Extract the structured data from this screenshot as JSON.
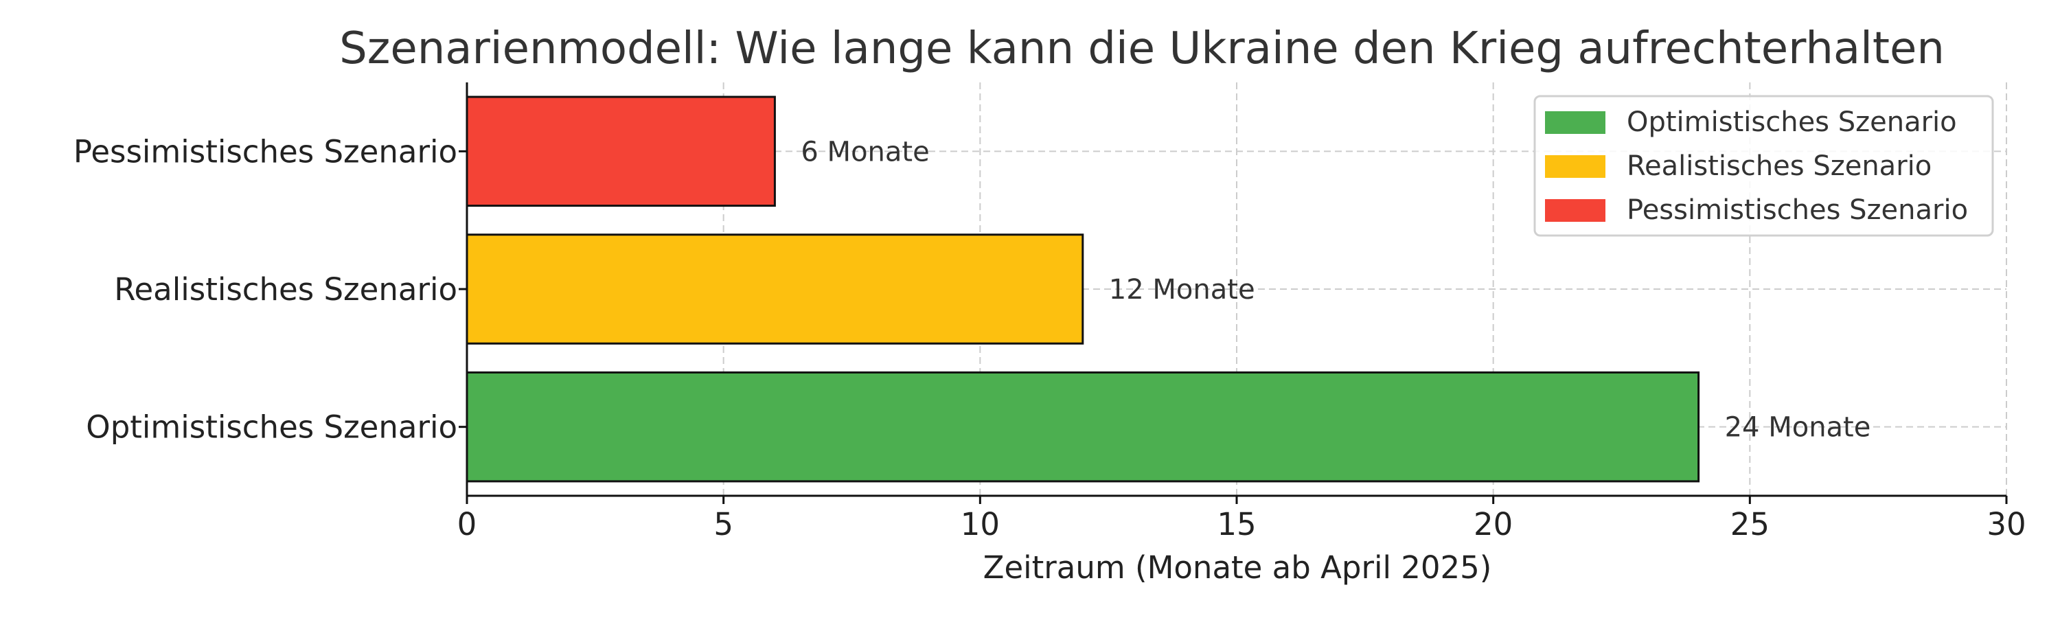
{
  "chart_data": {
    "type": "bar",
    "orientation": "horizontal",
    "title": "Szenarienmodell: Wie lange kann die Ukraine den Krieg aufrechterhalten",
    "xlabel": "Zeitraum (Monate ab April 2025)",
    "ylabel": "",
    "xlim": [
      0,
      30
    ],
    "xticks": [
      "0",
      "5",
      "10",
      "15",
      "20",
      "25",
      "30"
    ],
    "categories": [
      "Optimistisches Szenario",
      "Realistisches Szenario",
      "Pessimistisches Szenario"
    ],
    "values": [
      24,
      12,
      6
    ],
    "data_labels": [
      "24 Monate",
      "12 Monate",
      "6 Monate"
    ],
    "colors": [
      "#4caf50",
      "#fdc00f",
      "#f44336"
    ],
    "grid": true,
    "legend": {
      "position": "top-right",
      "entries": [
        {
          "label": "Optimistisches Szenario",
          "color": "#4caf50"
        },
        {
          "label": "Realistisches Szenario",
          "color": "#fdc00f"
        },
        {
          "label": "Pessimistisches Szenario",
          "color": "#f44336"
        }
      ]
    }
  }
}
